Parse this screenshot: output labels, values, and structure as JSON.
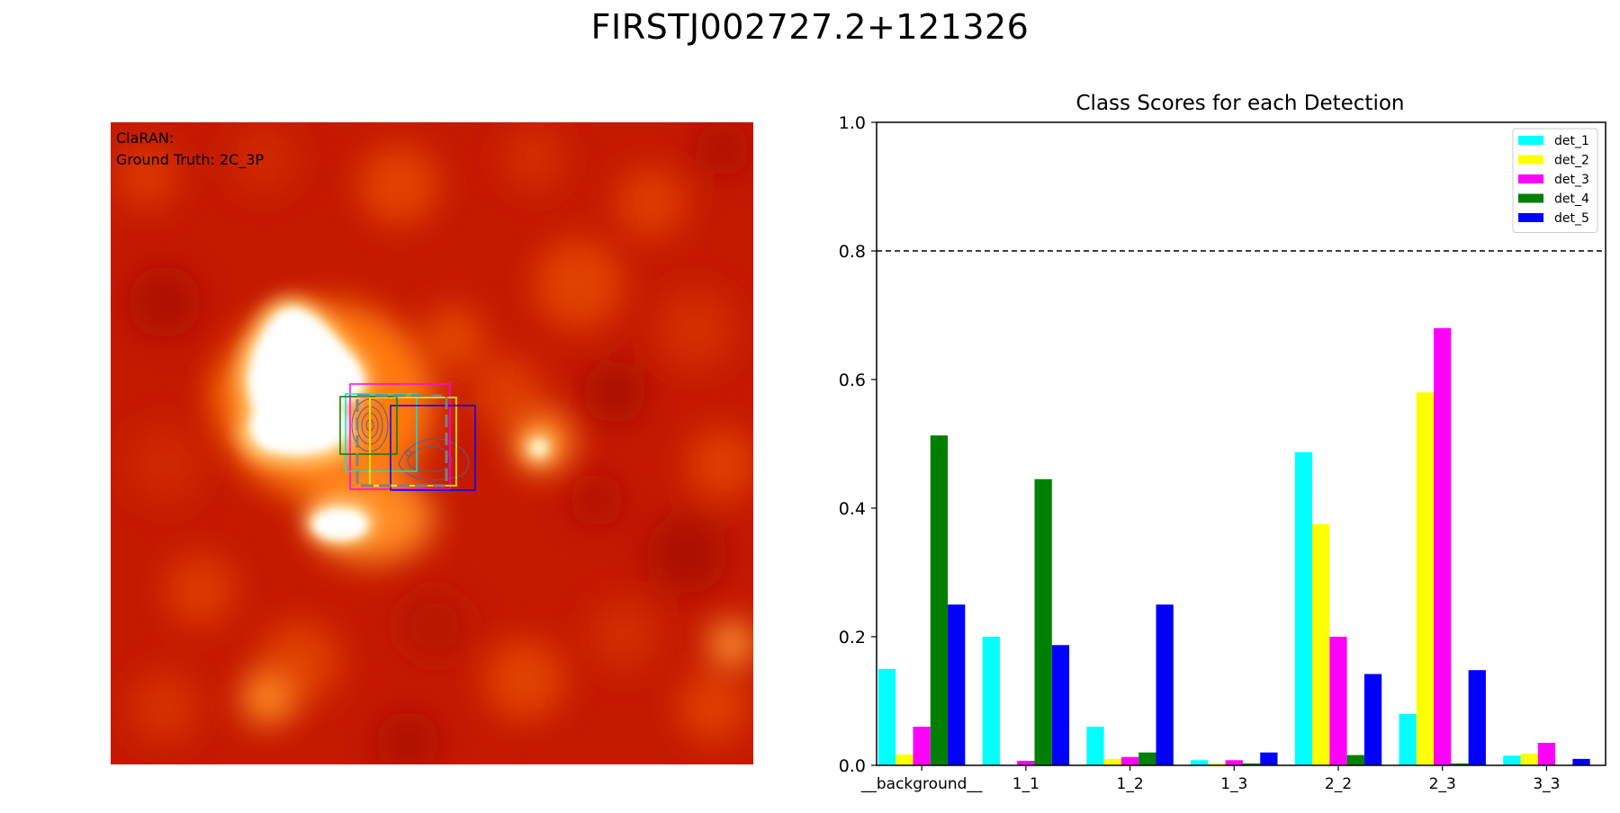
{
  "suptitle": "FIRSTJ002727.2+121326",
  "image_panel": {
    "line1": "ClaRAN:",
    "line2": "Ground Truth: 2C_3P",
    "box_colors": [
      "#ff00ff",
      "#00e5ee",
      "#ffff00",
      "#0000ff",
      "#007f00",
      "#808080"
    ]
  },
  "chart_data": {
    "type": "bar",
    "title": "Class Scores for each Detection",
    "xlabel": "",
    "ylabel": "",
    "categories": [
      "__background__",
      "1_1",
      "1_2",
      "1_3",
      "2_2",
      "2_3",
      "3_3"
    ],
    "ylim": [
      0,
      1.0
    ],
    "yticks": [
      "0.0",
      "0.2",
      "0.4",
      "0.6",
      "0.8",
      "1.0"
    ],
    "threshold": 0.8,
    "legend_position": "top-right",
    "series": [
      {
        "name": "det_1",
        "color": "#00ffff",
        "values": [
          0.15,
          0.2,
          0.06,
          0.008,
          0.487,
          0.08,
          0.015
        ]
      },
      {
        "name": "det_2",
        "color": "#ffff00",
        "values": [
          0.017,
          0.0,
          0.01,
          0.003,
          0.375,
          0.58,
          0.018
        ]
      },
      {
        "name": "det_3",
        "color": "#ff00ff",
        "values": [
          0.06,
          0.007,
          0.013,
          0.008,
          0.2,
          0.68,
          0.035
        ]
      },
      {
        "name": "det_4",
        "color": "#008000",
        "values": [
          0.513,
          0.445,
          0.02,
          0.003,
          0.016,
          0.003,
          0.0
        ]
      },
      {
        "name": "det_5",
        "color": "#0000ff",
        "values": [
          0.25,
          0.187,
          0.25,
          0.02,
          0.142,
          0.148,
          0.01
        ]
      }
    ]
  }
}
